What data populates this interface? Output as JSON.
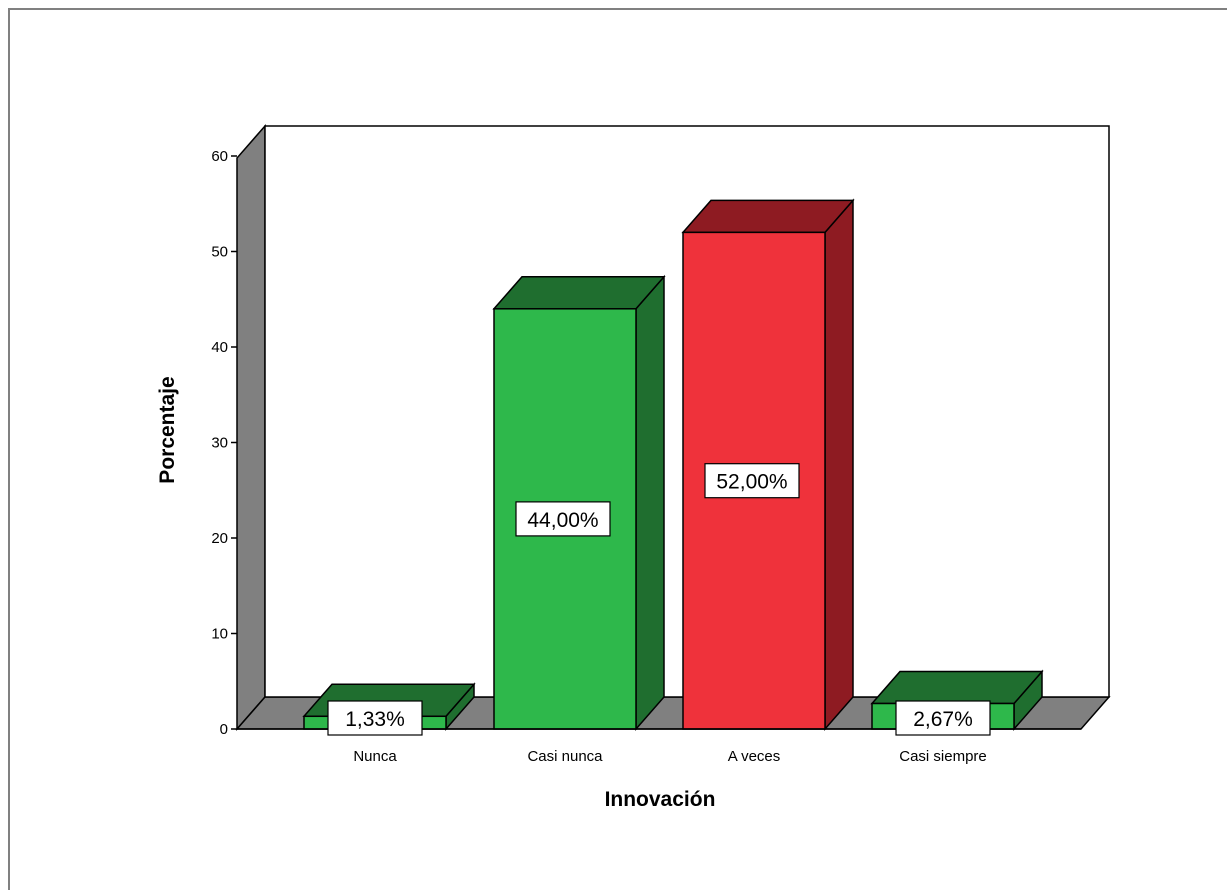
{
  "chart_data": {
    "type": "bar",
    "title": "",
    "xlabel": "Innovación",
    "ylabel": "Porcentaje",
    "categories": [
      "Nunca",
      "Casi nunca",
      "A veces",
      "Casi siempre"
    ],
    "values": [
      1.33,
      44.0,
      52.0,
      2.67
    ],
    "data_labels": [
      "1,33%",
      "44,00%",
      "52,00%",
      "2,67%"
    ],
    "yticks": [
      "0",
      "10",
      "20",
      "30",
      "40",
      "50",
      "60"
    ],
    "ylim": [
      0,
      60
    ],
    "grid": false,
    "legend": "none",
    "style": "3d",
    "colors": {
      "green_front": "#2eb84b",
      "green_side": "#1f6e2f",
      "red_front": "#ef323b",
      "red_side": "#8e1b22",
      "wall": "#808080",
      "floor": "#808080"
    },
    "bar_colors": [
      "green",
      "green",
      "red",
      "green"
    ]
  }
}
